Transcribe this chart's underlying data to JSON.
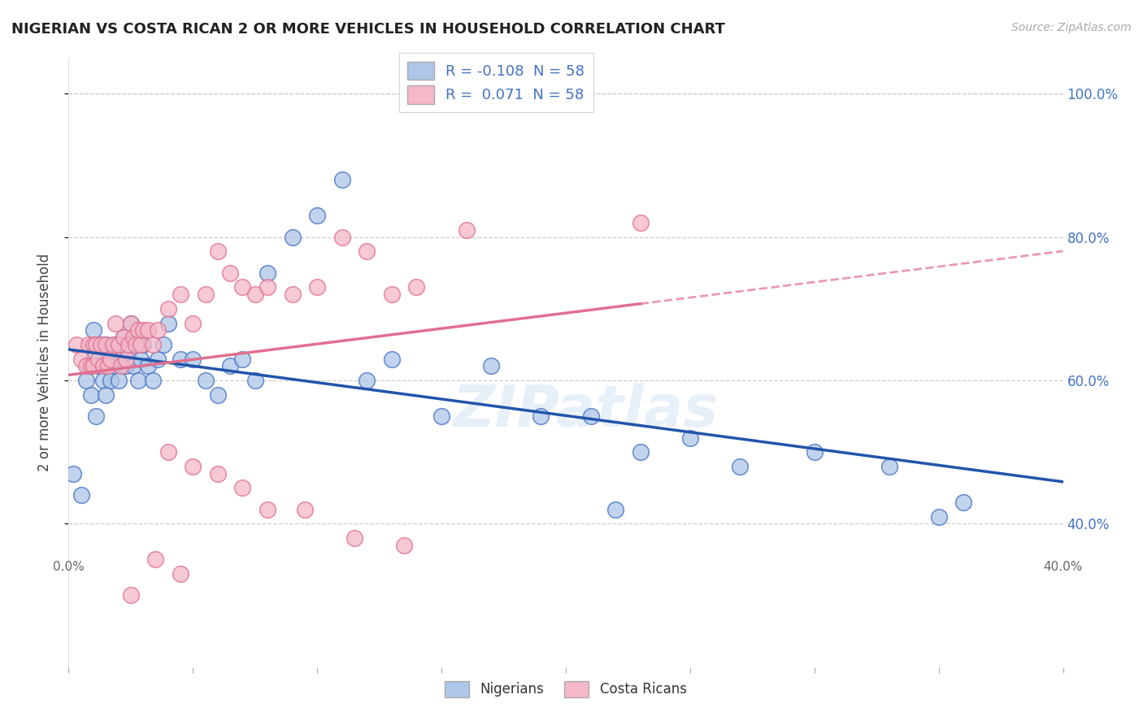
{
  "title": "NIGERIAN VS COSTA RICAN 2 OR MORE VEHICLES IN HOUSEHOLD CORRELATION CHART",
  "source": "Source: ZipAtlas.com",
  "ylabel": "2 or more Vehicles in Household",
  "legend_entries": [
    {
      "label": "R = -0.108  N = 58",
      "color": "#aec6e8"
    },
    {
      "label": "R =  0.071  N = 58",
      "color": "#f4b8c8"
    }
  ],
  "legend_bottom": [
    "Nigerians",
    "Costa Ricans"
  ],
  "blue_color": "#4472c4",
  "pink_color": "#e07090",
  "blue_scatter_color": "#aec6e8",
  "pink_scatter_color": "#f4b8c8",
  "trend_blue_color": "#2255aa",
  "trend_pink_color": "#e07090",
  "watermark": "ZIPatlas",
  "xlim": [
    0.0,
    0.4
  ],
  "ylim": [
    0.2,
    1.05
  ],
  "yticks": [
    0.4,
    0.6,
    0.8,
    1.0
  ],
  "ytick_labels": [
    "40.0%",
    "60.0%",
    "80.0%",
    "100.0%"
  ],
  "blue_points_x": [
    0.002,
    0.005,
    0.007,
    0.008,
    0.009,
    0.01,
    0.01,
    0.011,
    0.012,
    0.013,
    0.014,
    0.015,
    0.015,
    0.016,
    0.017,
    0.018,
    0.019,
    0.02,
    0.021,
    0.022,
    0.023,
    0.024,
    0.025,
    0.026,
    0.027,
    0.028,
    0.029,
    0.03,
    0.032,
    0.034,
    0.036,
    0.038,
    0.04,
    0.045,
    0.05,
    0.055,
    0.06,
    0.065,
    0.07,
    0.075,
    0.08,
    0.09,
    0.1,
    0.11,
    0.12,
    0.13,
    0.15,
    0.17,
    0.19,
    0.21,
    0.23,
    0.25,
    0.27,
    0.3,
    0.33,
    0.36,
    0.22,
    0.35
  ],
  "blue_points_y": [
    0.47,
    0.44,
    0.6,
    0.62,
    0.58,
    0.63,
    0.67,
    0.55,
    0.62,
    0.65,
    0.6,
    0.58,
    0.65,
    0.63,
    0.6,
    0.62,
    0.65,
    0.6,
    0.63,
    0.66,
    0.62,
    0.64,
    0.68,
    0.62,
    0.66,
    0.6,
    0.63,
    0.65,
    0.62,
    0.6,
    0.63,
    0.65,
    0.68,
    0.63,
    0.63,
    0.6,
    0.58,
    0.62,
    0.63,
    0.6,
    0.75,
    0.8,
    0.83,
    0.88,
    0.6,
    0.63,
    0.55,
    0.62,
    0.55,
    0.55,
    0.5,
    0.52,
    0.48,
    0.5,
    0.48,
    0.43,
    0.42,
    0.41
  ],
  "pink_points_x": [
    0.003,
    0.005,
    0.007,
    0.008,
    0.009,
    0.01,
    0.01,
    0.011,
    0.012,
    0.013,
    0.014,
    0.015,
    0.016,
    0.017,
    0.018,
    0.019,
    0.02,
    0.021,
    0.022,
    0.023,
    0.024,
    0.025,
    0.026,
    0.027,
    0.028,
    0.029,
    0.03,
    0.032,
    0.034,
    0.036,
    0.04,
    0.045,
    0.05,
    0.055,
    0.06,
    0.065,
    0.07,
    0.075,
    0.08,
    0.09,
    0.1,
    0.11,
    0.12,
    0.13,
    0.14,
    0.16,
    0.04,
    0.05,
    0.06,
    0.07,
    0.08,
    0.095,
    0.115,
    0.135,
    0.23,
    0.035,
    0.045,
    0.025
  ],
  "pink_points_y": [
    0.65,
    0.63,
    0.62,
    0.65,
    0.62,
    0.65,
    0.62,
    0.65,
    0.63,
    0.65,
    0.62,
    0.65,
    0.62,
    0.63,
    0.65,
    0.68,
    0.65,
    0.62,
    0.66,
    0.63,
    0.65,
    0.68,
    0.66,
    0.65,
    0.67,
    0.65,
    0.67,
    0.67,
    0.65,
    0.67,
    0.7,
    0.72,
    0.68,
    0.72,
    0.78,
    0.75,
    0.73,
    0.72,
    0.73,
    0.72,
    0.73,
    0.8,
    0.78,
    0.72,
    0.73,
    0.81,
    0.5,
    0.48,
    0.47,
    0.45,
    0.42,
    0.42,
    0.38,
    0.37,
    0.82,
    0.35,
    0.33,
    0.3
  ],
  "nigerian_R": -0.108,
  "nigerian_N": 58,
  "costarican_R": 0.071,
  "costarican_N": 58,
  "background_color": "#ffffff",
  "grid_color": "#cccccc"
}
